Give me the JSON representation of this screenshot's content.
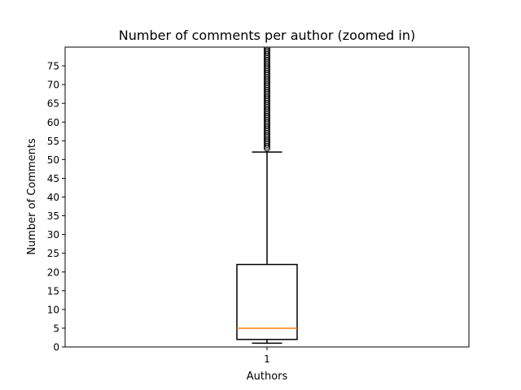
{
  "chart_data": {
    "type": "box",
    "title": "Number of comments per author (zoomed in)",
    "xlabel": "Authors",
    "ylabel": "Number of Comments",
    "ylim": [
      0,
      80
    ],
    "yticks": [
      0,
      5,
      10,
      15,
      20,
      25,
      30,
      35,
      40,
      45,
      50,
      55,
      60,
      65,
      70,
      75
    ],
    "categories": [
      "1"
    ],
    "box": {
      "whisker_low": 1,
      "q1": 2,
      "median": 5,
      "q3": 22,
      "whisker_high": 52,
      "outliers": [
        53,
        53.5,
        54,
        54.5,
        55,
        55.5,
        56,
        56.5,
        57,
        57.5,
        58,
        58.5,
        59,
        59.5,
        60,
        60.5,
        61,
        61.5,
        62,
        62.5,
        63,
        63.5,
        64,
        64.5,
        65,
        65.5,
        66,
        66.5,
        67,
        67.5,
        68,
        68.5,
        69,
        69.5,
        70,
        70.5,
        71,
        71.5,
        72,
        72.5,
        73,
        73.5,
        74,
        74.5,
        75,
        75.5,
        76,
        76.5,
        77,
        77.5,
        78,
        78.5,
        79,
        79.5,
        80
      ]
    },
    "colors": {
      "median": "#ff7f0e",
      "box": "#000000"
    },
    "grid": false,
    "legend": "none"
  }
}
